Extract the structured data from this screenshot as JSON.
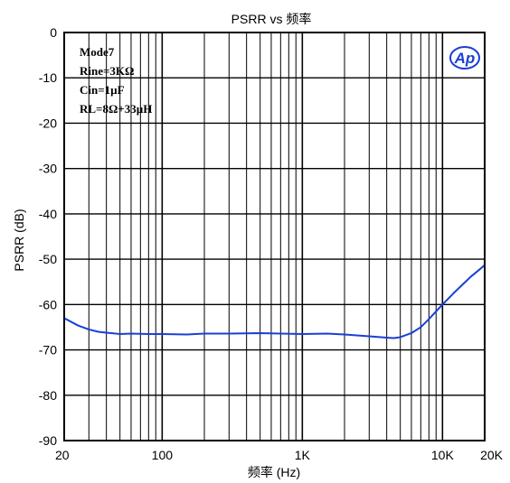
{
  "chart_data": {
    "type": "line",
    "title": "PSRR vs 频率",
    "xlabel": "频率 (Hz)",
    "ylabel": "PSRR (dB)",
    "xscale": "log",
    "xlim": [
      20,
      20000
    ],
    "ylim": [
      -90,
      0
    ],
    "grid": true,
    "x_ticks": [
      20,
      100,
      1000,
      10000,
      20000
    ],
    "x_tick_labels": [
      "20",
      "100",
      "1K",
      "10K",
      "20K"
    ],
    "y_ticks": [
      0,
      -10,
      -20,
      -30,
      -40,
      -50,
      -60,
      -70,
      -80,
      -90
    ],
    "y_tick_labels": [
      "0",
      "-10",
      "-20",
      "-30",
      "-40",
      "-50",
      "-60",
      "-70",
      "-80",
      "-90"
    ],
    "annotations": [
      "Mode7",
      "Rine=3KΩ",
      "Cin=1µF",
      "RL=8Ω+33µH"
    ],
    "logo_text": "Ap",
    "series": [
      {
        "color": "#1a3fd6",
        "x": [
          20,
          25,
          30,
          35,
          40,
          50,
          60,
          80,
          100,
          150,
          200,
          300,
          500,
          700,
          1000,
          1500,
          2000,
          3000,
          4000,
          4500,
          5000,
          6000,
          7000,
          8000,
          10000,
          12000,
          14000,
          16000,
          18000,
          20000
        ],
        "y": [
          -63,
          -64.6,
          -65.5,
          -66,
          -66.2,
          -66.5,
          -66.4,
          -66.5,
          -66.5,
          -66.6,
          -66.4,
          -66.4,
          -66.3,
          -66.4,
          -66.5,
          -66.4,
          -66.6,
          -67,
          -67.3,
          -67.4,
          -67.2,
          -66.3,
          -65,
          -63.2,
          -60,
          -57.5,
          -55.5,
          -53.8,
          -52.5,
          -51.3
        ]
      }
    ]
  }
}
